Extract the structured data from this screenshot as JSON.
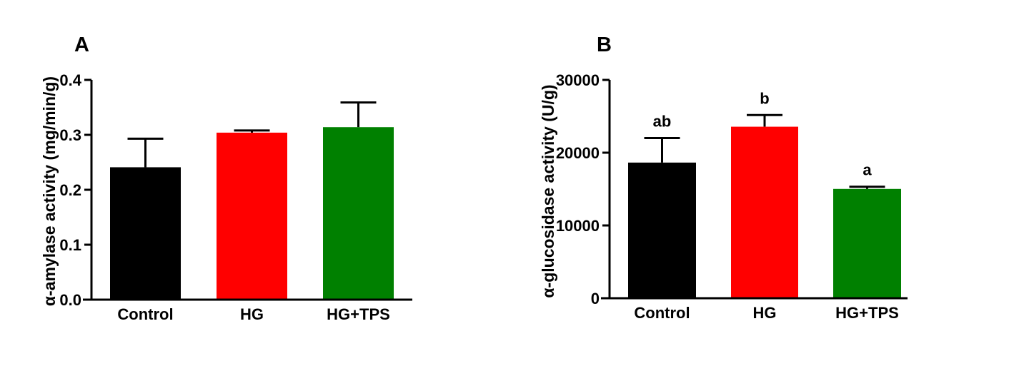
{
  "chart_data": [
    {
      "type": "bar",
      "panel_label": "A",
      "ylabel": "α-amylase activity (mg/min/g)",
      "xlabel": "",
      "categories": [
        "Control",
        "HG",
        "HG+TPS"
      ],
      "values": [
        0.241,
        0.304,
        0.314
      ],
      "error_upper": [
        0.293,
        0.308,
        0.359
      ],
      "colors": [
        "#000000",
        "#ff0000",
        "#008000"
      ],
      "ylim": [
        0,
        0.4
      ],
      "yticks": [
        "0.0",
        "0.1",
        "0.2",
        "0.3",
        "0.4"
      ],
      "ytick_values": [
        0,
        0.1,
        0.2,
        0.3,
        0.4
      ],
      "significance_labels": [
        "",
        "",
        ""
      ],
      "grid": false
    },
    {
      "type": "bar",
      "panel_label": "B",
      "ylabel": "α-glucosidase activity (U/g)",
      "xlabel": "",
      "categories": [
        "Control",
        "HG",
        "HG+TPS"
      ],
      "values": [
        18640,
        23570,
        15020
      ],
      "error_upper": [
        22010,
        25170,
        15320
      ],
      "colors": [
        "#000000",
        "#ff0000",
        "#008000"
      ],
      "ylim": [
        0,
        30000
      ],
      "yticks": [
        "0",
        "10000",
        "20000",
        "30000"
      ],
      "ytick_values": [
        0,
        10000,
        20000,
        30000
      ],
      "significance_labels": [
        "ab",
        "b",
        "a"
      ],
      "grid": false
    }
  ]
}
